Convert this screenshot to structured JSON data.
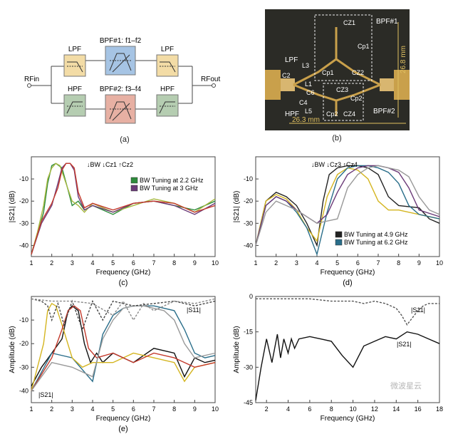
{
  "colors": {
    "lpf": "#f3dca6",
    "bpf1": "#a6c4e4",
    "bpf2": "#e7b0a3",
    "hpf": "#b5cdb1",
    "board": "#2b2b26",
    "gold": "#c9a04b"
  },
  "panel_a": {
    "label": "(a)",
    "lpf_top": "LPF",
    "lpf_top_right": "LPF",
    "bpf1_label": "BPF#1: f1–f2",
    "bpf2_label": "BPF#2: f3–f4",
    "hpf_bottom": "HPF",
    "hpf_bottom_right": "HPF",
    "rf_in": "RFin",
    "rf_out": "RFout"
  },
  "panel_b": {
    "label": "(b)",
    "bpf1": "BPF#1",
    "bpf2": "BPF#2",
    "lpf": "LPF",
    "hpf": "HPF",
    "dim_vertical": "26.8 mm",
    "dim_horizontal": "26.3 mm",
    "components": [
      "CZ1",
      "Cp1",
      "Cp1",
      "CZ2",
      "C2",
      "L3",
      "L1",
      "C6",
      "C4",
      "L5",
      "CZ3",
      "Cp2",
      "Cp2",
      "CZ4"
    ]
  },
  "chart_data": [
    {
      "id": "c",
      "type": "line",
      "caption": "(c)",
      "xlabel": "Frequency (GHz)",
      "ylabel": "|S21| (dB)",
      "xlim": [
        1,
        10
      ],
      "ylim": [
        -45,
        0
      ],
      "xticks": [
        1,
        2,
        3,
        4,
        5,
        6,
        7,
        8,
        9,
        10
      ],
      "yticks": [
        -40,
        -30,
        -20,
        -10
      ],
      "annotation": "↓BW ↓Cz1 ↑Cz2",
      "legend": [
        "BW Tuning at 2.2 GHz",
        "BW Tuning at 3 GHz"
      ],
      "series": [
        {
          "color": "#2e8b3c",
          "x": [
            1,
            1.3,
            1.6,
            1.8,
            2.0,
            2.2,
            2.5,
            2.8,
            3.0,
            3.3,
            3.6,
            4,
            5,
            6,
            7,
            8,
            9,
            10
          ],
          "y": [
            -44,
            -35,
            -25,
            -12,
            -4,
            -3,
            -5,
            -15,
            -22,
            -20,
            -24,
            -22,
            -26,
            -21,
            -20,
            -22,
            -24,
            -20
          ]
        },
        {
          "color": "#a7b840",
          "x": [
            1,
            1.3,
            1.6,
            1.8,
            2.0,
            2.2,
            2.4,
            2.7,
            3.0,
            3.3,
            3.6,
            4,
            5,
            6,
            7,
            8,
            9,
            10
          ],
          "y": [
            -44,
            -34,
            -22,
            -10,
            -5,
            -3,
            -4,
            -12,
            -20,
            -22,
            -25,
            -21,
            -25,
            -22,
            -19,
            -21,
            -25,
            -19
          ]
        },
        {
          "color": "#6b3a78",
          "x": [
            1,
            1.5,
            2.0,
            2.3,
            2.5,
            2.7,
            2.9,
            3.1,
            3.3,
            3.6,
            4,
            5,
            6,
            7,
            8,
            9,
            10
          ],
          "y": [
            -44,
            -30,
            -22,
            -12,
            -5,
            -3,
            -3,
            -6,
            -18,
            -24,
            -22,
            -25,
            -21,
            -20,
            -22,
            -26,
            -21
          ]
        },
        {
          "color": "#c43a2c",
          "x": [
            1,
            1.5,
            2.0,
            2.3,
            2.5,
            2.7,
            2.9,
            3.1,
            3.3,
            3.6,
            4,
            5,
            6,
            7,
            8,
            9,
            10
          ],
          "y": [
            -44,
            -29,
            -21,
            -14,
            -6,
            -3,
            -3,
            -5,
            -16,
            -23,
            -21,
            -24,
            -21,
            -20,
            -21,
            -25,
            -22
          ]
        }
      ]
    },
    {
      "id": "d",
      "type": "line",
      "caption": "(d)",
      "xlabel": "Frequency (GHz)",
      "ylabel": "|S21| (dB)",
      "xlim": [
        1,
        10
      ],
      "ylim": [
        -45,
        0
      ],
      "xticks": [
        1,
        2,
        3,
        4,
        5,
        6,
        7,
        8,
        9,
        10
      ],
      "yticks": [
        -40,
        -30,
        -20,
        -10
      ],
      "annotation": "↓BW ↓Cz3 ↑Cz4",
      "legend": [
        "BW Tuning at 4.9 GHz",
        "BW Tuning at 6.2 GHz"
      ],
      "series": [
        {
          "color": "#222222",
          "x": [
            1,
            1.5,
            2,
            2.5,
            3,
            3.5,
            4,
            4.3,
            4.6,
            5,
            5.5,
            6,
            6.5,
            7,
            7.5,
            8,
            9,
            9.5,
            10
          ],
          "y": [
            -40,
            -20,
            -16,
            -18,
            -22,
            -30,
            -40,
            -20,
            -8,
            -5,
            -4,
            -4,
            -5,
            -8,
            -18,
            -22,
            -23,
            -28,
            -30
          ]
        },
        {
          "color": "#d4b520",
          "x": [
            1,
            1.5,
            2,
            2.5,
            3,
            3.5,
            4,
            4.5,
            5,
            5.5,
            6,
            6.5,
            7,
            7.5,
            8,
            9,
            10
          ],
          "y": [
            -40,
            -20,
            -17,
            -19,
            -24,
            -32,
            -38,
            -18,
            -8,
            -5,
            -6,
            -10,
            -20,
            -24,
            -24,
            -26,
            -28
          ]
        },
        {
          "color": "#2a6e8a",
          "x": [
            1,
            1.5,
            2,
            2.5,
            3,
            3.5,
            4,
            4.5,
            5,
            5.5,
            6,
            6.5,
            7,
            7.5,
            8,
            8.5,
            9,
            10
          ],
          "y": [
            -40,
            -22,
            -18,
            -20,
            -25,
            -32,
            -44,
            -25,
            -10,
            -5,
            -4,
            -4,
            -5,
            -7,
            -12,
            -22,
            -26,
            -28
          ]
        },
        {
          "color": "#6b3a78",
          "x": [
            1,
            1.5,
            2,
            2.5,
            3,
            4,
            4.5,
            5,
            5.5,
            6,
            6.5,
            7,
            7.5,
            8,
            8.5,
            9,
            10
          ],
          "y": [
            -40,
            -22,
            -18,
            -20,
            -24,
            -30,
            -26,
            -16,
            -8,
            -5,
            -4,
            -4,
            -5,
            -7,
            -14,
            -24,
            -27
          ]
        },
        {
          "color": "#999999",
          "x": [
            1,
            1.5,
            2,
            3,
            4,
            5,
            5.5,
            6,
            6.5,
            7,
            7.5,
            8,
            8.5,
            9,
            9.5,
            10
          ],
          "y": [
            -40,
            -25,
            -20,
            -24,
            -30,
            -28,
            -14,
            -8,
            -5,
            -4,
            -5,
            -6,
            -9,
            -18,
            -24,
            -26
          ]
        }
      ]
    },
    {
      "id": "e",
      "type": "line",
      "caption": "(e)",
      "xlabel": "Frequency (GHz)",
      "ylabel": "Amplitude (dB)",
      "xlim": [
        1,
        10
      ],
      "ylim": [
        -45,
        0
      ],
      "xticks": [
        1,
        2,
        3,
        4,
        5,
        6,
        7,
        8,
        9,
        10
      ],
      "yticks": [
        -40,
        -30,
        -20,
        -10
      ],
      "labels": [
        "|S11|",
        "|S21|"
      ],
      "series": [
        {
          "color": "#111111",
          "x": [
            1,
            1.5,
            2,
            2.5,
            2.8,
            3,
            3.3,
            3.6,
            3.9,
            4.2,
            4.5,
            5,
            6,
            7,
            8,
            8.5,
            9,
            9.5,
            10
          ],
          "y": [
            -38,
            -30,
            -24,
            -18,
            -6,
            -4,
            -6,
            -20,
            -28,
            -24,
            -28,
            -24,
            -28,
            -22,
            -24,
            -34,
            -26,
            -28,
            -27
          ]
        },
        {
          "color": "#2a6e8a",
          "x": [
            1,
            2,
            3,
            4,
            4.5,
            5,
            5.5,
            6,
            7,
            8,
            8.5,
            9,
            9.5,
            10
          ],
          "y": [
            -40,
            -24,
            -26,
            -36,
            -16,
            -8,
            -5,
            -4,
            -4,
            -6,
            -14,
            -24,
            -26,
            -25
          ]
        },
        {
          "color": "#d4b520",
          "x": [
            1,
            1.6,
            1.8,
            2.0,
            2.2,
            2.5,
            3,
            3.5,
            4,
            5,
            6,
            7,
            8,
            8.5,
            9,
            10
          ],
          "y": [
            -40,
            -20,
            -6,
            -3,
            -4,
            -12,
            -26,
            -30,
            -28,
            -28,
            -24,
            -26,
            -28,
            -36,
            -30,
            -28
          ]
        },
        {
          "color": "#c43a2c",
          "x": [
            1,
            2,
            2.5,
            2.8,
            3.1,
            3.4,
            3.8,
            4.2,
            5,
            6,
            7,
            8,
            9,
            10
          ],
          "y": [
            -40,
            -26,
            -14,
            -6,
            -4,
            -6,
            -22,
            -26,
            -24,
            -28,
            -24,
            -26,
            -30,
            -28
          ]
        },
        {
          "color": "#999999",
          "x": [
            1,
            2,
            3,
            4,
            4.5,
            5,
            5.5,
            6,
            6.5,
            7,
            7.5,
            8,
            8.5,
            9,
            10
          ],
          "y": [
            -40,
            -28,
            -30,
            -34,
            -18,
            -10,
            -5,
            -4,
            -4,
            -5,
            -6,
            -10,
            -20,
            -26,
            -24
          ]
        },
        {
          "color": "#444444",
          "dash": true,
          "x": [
            1,
            1.5,
            1.8,
            2,
            2.3,
            2.6,
            3,
            3.5,
            4,
            4.5,
            5,
            6,
            7,
            8,
            9,
            10
          ],
          "y": [
            -1,
            -2,
            -4,
            -10,
            -3,
            -12,
            -2,
            -14,
            -2,
            -10,
            -2,
            -4,
            -3,
            -2,
            -4,
            -2
          ]
        },
        {
          "color": "#888888",
          "dash": true,
          "x": [
            1,
            2,
            3,
            4,
            5,
            5.5,
            6,
            6.5,
            7,
            8,
            9,
            10
          ],
          "y": [
            -1,
            -2,
            -2,
            -3,
            -8,
            -2,
            -10,
            -3,
            -6,
            -2,
            -3,
            -1
          ]
        }
      ]
    },
    {
      "id": "f",
      "type": "line",
      "caption": "",
      "xlabel": "Frequency (GHz)",
      "ylabel": "Amplitude (dB)",
      "xlim": [
        1,
        18
      ],
      "ylim": [
        -45,
        0
      ],
      "xticks": [
        2,
        4,
        6,
        8,
        10,
        12,
        14,
        16,
        18
      ],
      "yticks": [
        -45,
        -30,
        -15,
        0
      ],
      "labels": [
        "|S11|",
        "|S21|"
      ],
      "series": [
        {
          "color": "#111111",
          "x": [
            1,
            1.5,
            2,
            2.5,
            3,
            3.3,
            3.6,
            4,
            4.3,
            4.6,
            5,
            6,
            7,
            8,
            9,
            10,
            11,
            12,
            13,
            14,
            15,
            16,
            17,
            18
          ],
          "y": [
            -44,
            -30,
            -18,
            -28,
            -16,
            -26,
            -18,
            -24,
            -18,
            -22,
            -18,
            -17,
            -18,
            -19,
            -25,
            -30,
            -21,
            -19,
            -17,
            -18,
            -15,
            -16,
            -18,
            -20
          ]
        },
        {
          "color": "#555555",
          "dash": true,
          "x": [
            1,
            2,
            4,
            6,
            8,
            10,
            11,
            12,
            13,
            14,
            14.5,
            15,
            15.5,
            16,
            16.5,
            17,
            18
          ],
          "y": [
            -1,
            -1,
            -1,
            -1,
            -2,
            -2,
            -3,
            -2,
            -3,
            -5,
            -8,
            -12,
            -9,
            -6,
            -4,
            -3,
            -3
          ]
        }
      ]
    }
  ],
  "watermark": "微波星云"
}
